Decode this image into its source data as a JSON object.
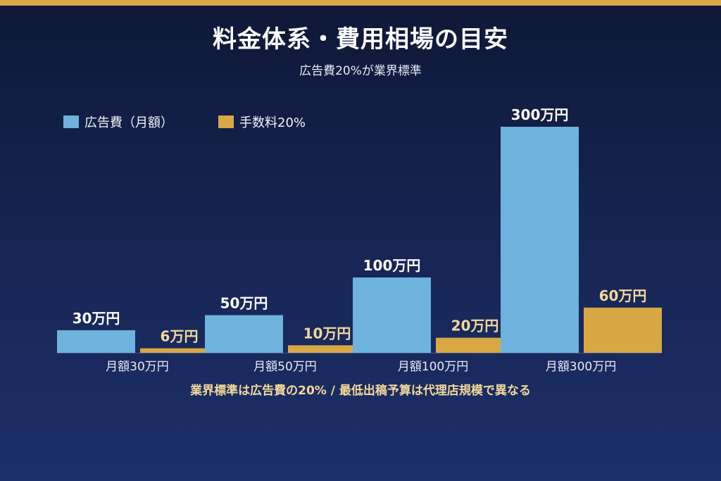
{
  "page": {
    "title": "料金体系・費用相場の目安",
    "subtitle": "広告費20%が業界標準",
    "footnote": "業界標準は広告費の20% / 最低出稿予算は代理店規模で異なる"
  },
  "colors": {
    "accent_bar": "#d8a845",
    "ad_series": "#6db3dd",
    "fee_series": "#d8a845",
    "fee_label": "#f2d99a"
  },
  "chart_data": {
    "type": "bar",
    "categories": [
      "月額30万円",
      "月額50万円",
      "月額100万円",
      "月額300万円"
    ],
    "series": [
      {
        "name": "広告費（月額）",
        "values": [
          30,
          50,
          100,
          300
        ],
        "labels": [
          "30万円",
          "50万円",
          "100万円",
          "300万円"
        ]
      },
      {
        "name": "手数料20%",
        "values": [
          6,
          10,
          20,
          60
        ],
        "labels": [
          "6万円",
          "10万円",
          "20万円",
          "60万円"
        ]
      }
    ],
    "unit": "万円",
    "ylim": [
      0,
      300
    ],
    "legend": "top-left",
    "grid": false
  }
}
